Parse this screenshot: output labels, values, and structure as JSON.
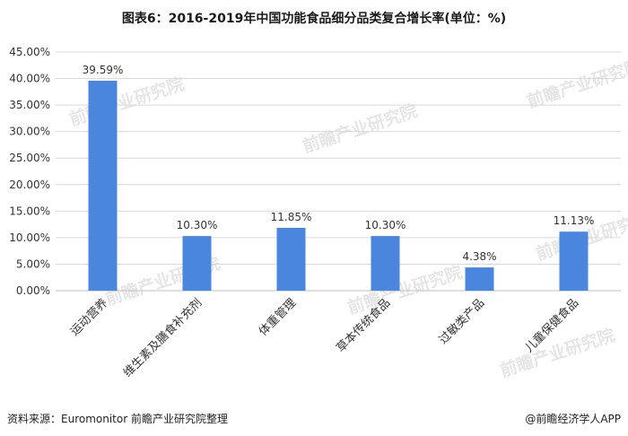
{
  "title": "图表6：2016-2019年中国功能食品细分品类复合增长率(单位：%)",
  "footer": {
    "source": "资料来源：Euromonitor 前瞻产业研究院整理",
    "brand": "@前瞻经济学人APP"
  },
  "watermark": "前瞻产业研究院",
  "colors": {
    "bar": "#4a86de",
    "grid": "#d9d9d9",
    "axis": "#bfbfbf",
    "text": "#333333"
  },
  "chart_data": {
    "type": "bar",
    "categories": [
      "运动营养",
      "维生素及膳食补充剂",
      "体重管理",
      "草本传统食品",
      "过敏类产品",
      "儿童保健食品"
    ],
    "values": [
      39.59,
      10.3,
      11.85,
      10.3,
      4.38,
      11.13
    ],
    "data_labels": [
      "39.59%",
      "10.30%",
      "11.85%",
      "10.30%",
      "4.38%",
      "11.13%"
    ],
    "ylim": [
      0,
      45
    ],
    "yticks": [
      0,
      5,
      10,
      15,
      20,
      25,
      30,
      35,
      40,
      45
    ],
    "ytick_labels": [
      "0.00%",
      "5.00%",
      "10.00%",
      "15.00%",
      "20.00%",
      "25.00%",
      "30.00%",
      "35.00%",
      "40.00%",
      "45.00%"
    ],
    "grid": true
  }
}
